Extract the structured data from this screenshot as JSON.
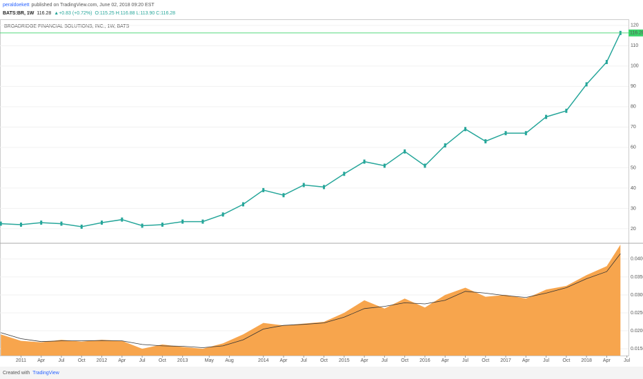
{
  "header": {
    "author": "peraldoekett",
    "published": "published on TradingView.com, June 02, 2018 09:20 EST",
    "symbol": "BATS:BR, 1W",
    "last": "116.28",
    "change": "▲+0.83 (+0.72%)",
    "ohlc": "O:115.25 H:116.88 L:113.90 C:116.28"
  },
  "footer": {
    "created": "Created with",
    "brand": "TradingView"
  },
  "chart_data": [
    {
      "type": "line",
      "title": "BROADRIDGE FINANCIAL SOLUTIONS, INC., 1W, BATS",
      "color": "#26a69a",
      "x": [
        2010.75,
        2011.0,
        2011.25,
        2011.5,
        2011.75,
        2012.0,
        2012.25,
        2012.5,
        2012.75,
        2013.0,
        2013.25,
        2013.5,
        2013.75,
        2014.0,
        2014.25,
        2014.5,
        2014.75,
        2015.0,
        2015.25,
        2015.5,
        2015.75,
        2016.0,
        2016.25,
        2016.5,
        2016.75,
        2017.0,
        2017.25,
        2017.5,
        2017.75,
        2018.0,
        2018.25,
        2018.42
      ],
      "values": [
        22.5,
        22,
        23,
        22.5,
        21,
        23,
        24.5,
        21.5,
        22,
        23.5,
        23.5,
        27,
        32,
        39,
        36.5,
        41.5,
        40.5,
        47,
        53,
        51,
        58,
        51,
        61,
        69,
        63,
        67,
        67,
        75,
        78,
        91,
        102,
        116.28
      ],
      "last_value": 116.28,
      "last_color": "#3cd36b",
      "xlim": [
        2010.74,
        2018.52
      ],
      "ylim": [
        13.2,
        123
      ],
      "yticks": [
        20,
        30,
        40,
        50,
        60,
        70,
        80,
        90,
        100,
        110,
        120
      ]
    },
    {
      "type": "area",
      "x": [
        2010.75,
        2011.0,
        2011.25,
        2011.5,
        2011.75,
        2012.0,
        2012.25,
        2012.5,
        2012.75,
        2013.0,
        2013.25,
        2013.5,
        2013.75,
        2014.0,
        2014.25,
        2014.5,
        2014.75,
        2015.0,
        2015.25,
        2015.5,
        2015.75,
        2016.0,
        2016.25,
        2016.5,
        2016.75,
        2017.0,
        2017.25,
        2017.5,
        2017.75,
        2018.0,
        2018.25,
        2018.42
      ],
      "series": [
        {
          "color": "#f7a54d",
          "values": [
            0.019,
            0.0172,
            0.0168,
            0.0175,
            0.017,
            0.0175,
            0.0172,
            0.015,
            0.0162,
            0.0155,
            0.015,
            0.0165,
            0.019,
            0.0222,
            0.0215,
            0.022,
            0.0225,
            0.025,
            0.0285,
            0.0262,
            0.029,
            0.0265,
            0.03,
            0.032,
            0.0295,
            0.03,
            0.029,
            0.0315,
            0.0325,
            0.0355,
            0.038,
            0.044
          ]
        },
        {
          "color": "#333333",
          "values": [
            0.0195,
            0.0178,
            0.017,
            0.0172,
            0.0172,
            0.0173,
            0.0172,
            0.0162,
            0.0158,
            0.0157,
            0.0153,
            0.0158,
            0.0175,
            0.0205,
            0.0215,
            0.0218,
            0.0222,
            0.0238,
            0.0262,
            0.0268,
            0.0278,
            0.0275,
            0.0285,
            0.031,
            0.0305,
            0.0298,
            0.0293,
            0.0305,
            0.032,
            0.0345,
            0.0365,
            0.0415
          ]
        }
      ],
      "xlim": [
        2010.74,
        2018.52
      ],
      "ylim": [
        0.0131,
        0.0442
      ],
      "yticks": [
        {
          "value": 0.015,
          "label": "0.0150"
        },
        {
          "value": 0.02,
          "label": "0.0200"
        },
        {
          "value": 0.025,
          "label": "0.0250"
        },
        {
          "value": 0.03,
          "label": "0.0300"
        },
        {
          "value": 0.035,
          "label": "0.0350"
        },
        {
          "value": 0.04,
          "label": "0.0400"
        }
      ],
      "xticks": [
        {
          "value": 2011.0,
          "label": "2011"
        },
        {
          "value": 2011.25,
          "label": "Apr"
        },
        {
          "value": 2011.5,
          "label": "Jul"
        },
        {
          "value": 2011.75,
          "label": "Oct"
        },
        {
          "value": 2012.0,
          "label": "2012"
        },
        {
          "value": 2012.25,
          "label": "Apr"
        },
        {
          "value": 2012.5,
          "label": "Jul"
        },
        {
          "value": 2012.75,
          "label": "Oct"
        },
        {
          "value": 2013.0,
          "label": "2013"
        },
        {
          "value": 2013.33,
          "label": "May"
        },
        {
          "value": 2013.58,
          "label": "Aug"
        },
        {
          "value": 2014.0,
          "label": "2014"
        },
        {
          "value": 2014.25,
          "label": "Apr"
        },
        {
          "value": 2014.5,
          "label": "Jul"
        },
        {
          "value": 2014.75,
          "label": "Oct"
        },
        {
          "value": 2015.0,
          "label": "2015"
        },
        {
          "value": 2015.25,
          "label": "Apr"
        },
        {
          "value": 2015.5,
          "label": "Jul"
        },
        {
          "value": 2015.75,
          "label": "Oct"
        },
        {
          "value": 2016.0,
          "label": "2016"
        },
        {
          "value": 2016.25,
          "label": "Apr"
        },
        {
          "value": 2016.5,
          "label": "Jul"
        },
        {
          "value": 2016.75,
          "label": "Oct"
        },
        {
          "value": 2017.0,
          "label": "2017"
        },
        {
          "value": 2017.25,
          "label": "Apr"
        },
        {
          "value": 2017.5,
          "label": "Jul"
        },
        {
          "value": 2017.75,
          "label": "Oct"
        },
        {
          "value": 2018.0,
          "label": "2018"
        },
        {
          "value": 2018.25,
          "label": "Apr"
        },
        {
          "value": 2018.5,
          "label": "Jul"
        }
      ]
    }
  ]
}
